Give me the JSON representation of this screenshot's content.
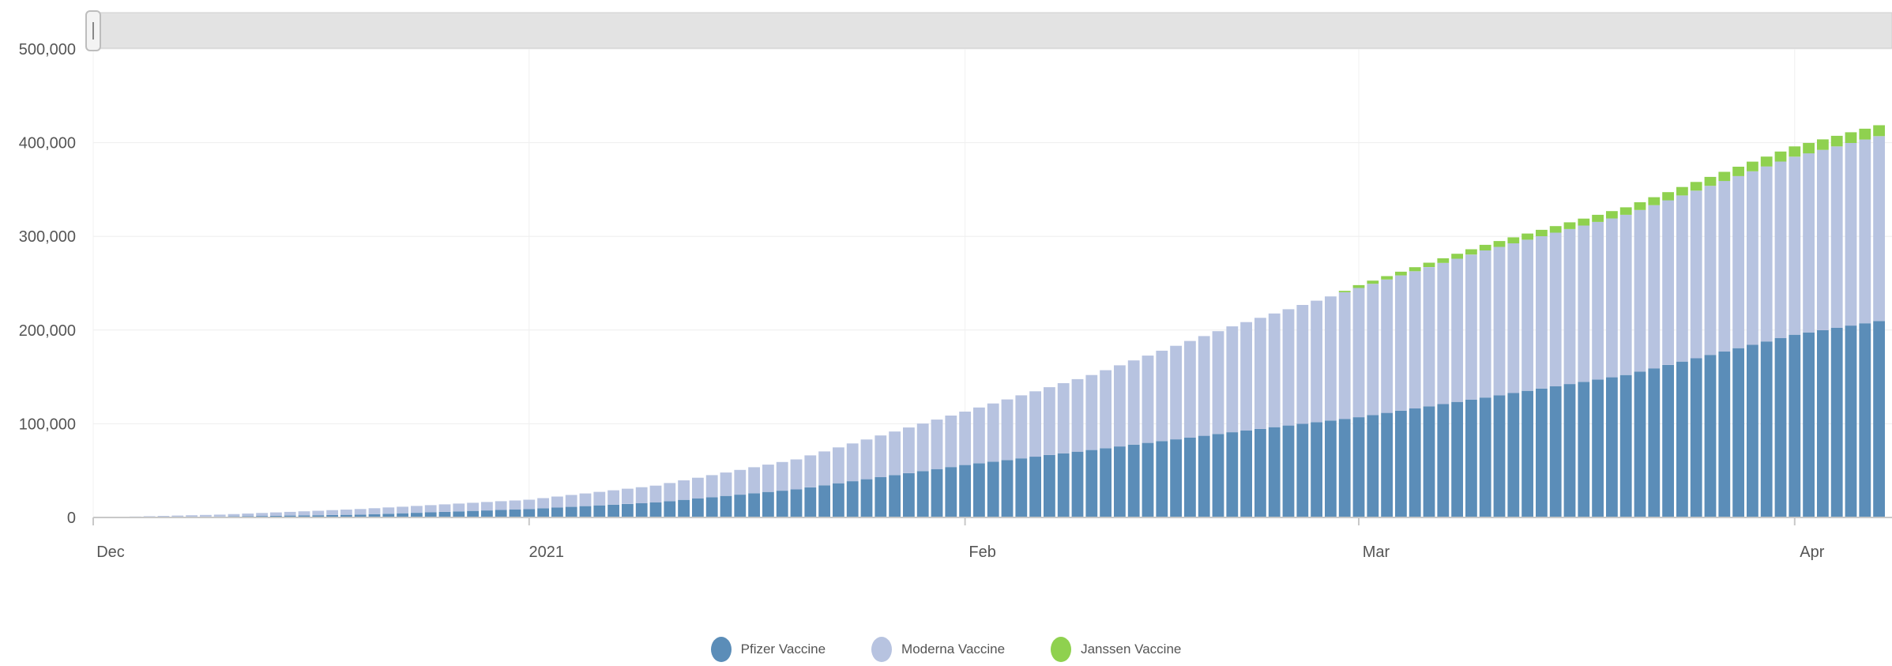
{
  "chart_data": {
    "type": "bar",
    "stacked": true,
    "y_ticks": [
      "500,000",
      "400,000",
      "300,000",
      "200,000",
      "100,000",
      "0"
    ],
    "x_ticks": [
      "Dec",
      "2021",
      "Feb",
      "Mar",
      "Apr"
    ],
    "ylim": [
      0,
      500000
    ],
    "grid": true,
    "legend_position": "bottom-center",
    "colors": {
      "pfizer": "#5b8db8",
      "moderna": "#b7c3e0",
      "janssen": "#8fd14f"
    },
    "series": [
      {
        "name": "Pfizer Vaccine",
        "points": [
          [
            "2020-12-01",
            0
          ],
          [
            "2020-12-10",
            1000
          ],
          [
            "2020-12-20",
            3000
          ],
          [
            "2021-01-01",
            9000
          ],
          [
            "2021-01-10",
            16000
          ],
          [
            "2021-01-20",
            30000
          ],
          [
            "2021-02-01",
            56000
          ],
          [
            "2021-02-10",
            72000
          ],
          [
            "2021-02-20",
            91000
          ],
          [
            "2021-03-01",
            107000
          ],
          [
            "2021-03-10",
            128000
          ],
          [
            "2021-03-20",
            152000
          ],
          [
            "2021-04-01",
            195000
          ],
          [
            "2021-04-10",
            217000
          ]
        ]
      },
      {
        "name": "Moderna Vaccine",
        "points": [
          [
            "2020-12-01",
            0
          ],
          [
            "2020-12-10",
            2000
          ],
          [
            "2020-12-20",
            6000
          ],
          [
            "2021-01-01",
            10000
          ],
          [
            "2021-01-10",
            18000
          ],
          [
            "2021-01-20",
            32000
          ],
          [
            "2021-02-01",
            57000
          ],
          [
            "2021-02-10",
            80000
          ],
          [
            "2021-02-20",
            113000
          ],
          [
            "2021-03-01",
            138000
          ],
          [
            "2021-03-10",
            157000
          ],
          [
            "2021-03-20",
            171000
          ],
          [
            "2021-04-01",
            190000
          ],
          [
            "2021-04-10",
            201000
          ]
        ]
      },
      {
        "name": "Janssen Vaccine",
        "points": [
          [
            "2021-02-27",
            0
          ],
          [
            "2021-03-01",
            3000
          ],
          [
            "2021-03-10",
            6000
          ],
          [
            "2021-03-20",
            8000
          ],
          [
            "2021-04-01",
            11000
          ],
          [
            "2021-04-10",
            12000
          ]
        ]
      }
    ]
  }
}
